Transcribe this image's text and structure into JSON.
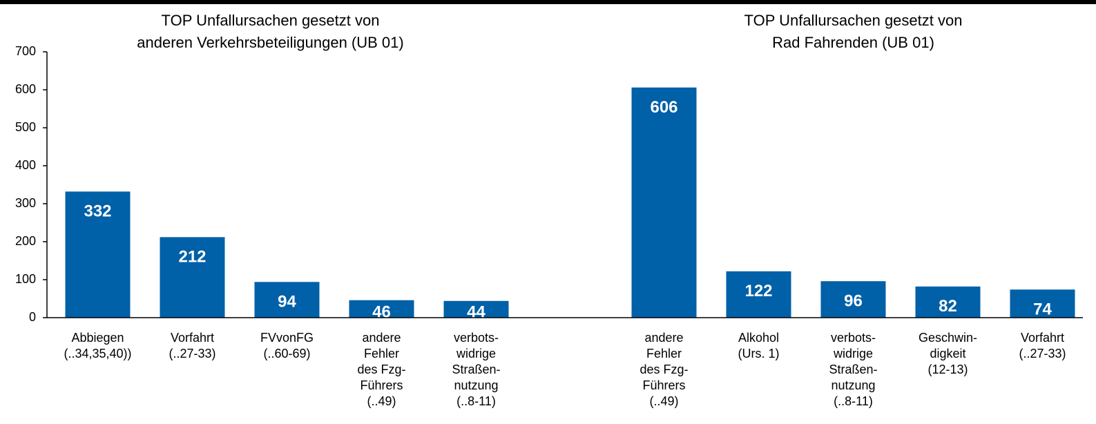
{
  "chart_data": [
    {
      "type": "bar",
      "title": "TOP Unfallursachen gesetzt von\nanderen Verkehrsbeteiligungen (UB 01)",
      "categories": [
        "Abbiegen\n(..34,35,40))",
        "Vorfahrt\n(..27-33)",
        "FVvonFG\n(..60-69)",
        "andere\nFehler\ndes Fzg-\nFührers\n(..49)",
        "verbots-\nwidrige\nStraßen-\nnutzung\n(..8-11)"
      ],
      "values": [
        332,
        212,
        94,
        46,
        44
      ],
      "color": "#0060a8",
      "ylim": [
        0,
        700
      ],
      "yticks": [
        0,
        100,
        200,
        300,
        400,
        500,
        600,
        700
      ]
    },
    {
      "type": "bar",
      "title": "TOP Unfallursachen gesetzt von\nRad Fahrenden (UB 01)",
      "categories": [
        "andere\nFehler\ndes Fzg-\nFührers\n(..49)",
        "Alkohol\n(Urs. 1)",
        "verbots-\nwidrige\nStraßen-\nnutzung\n(..8-11)",
        "Geschwin-\ndigkeit\n(12-13)",
        "Vorfahrt\n(..27-33)"
      ],
      "values": [
        606,
        122,
        96,
        82,
        74
      ],
      "color": "#0060a8",
      "ylim": [
        0,
        700
      ]
    }
  ]
}
